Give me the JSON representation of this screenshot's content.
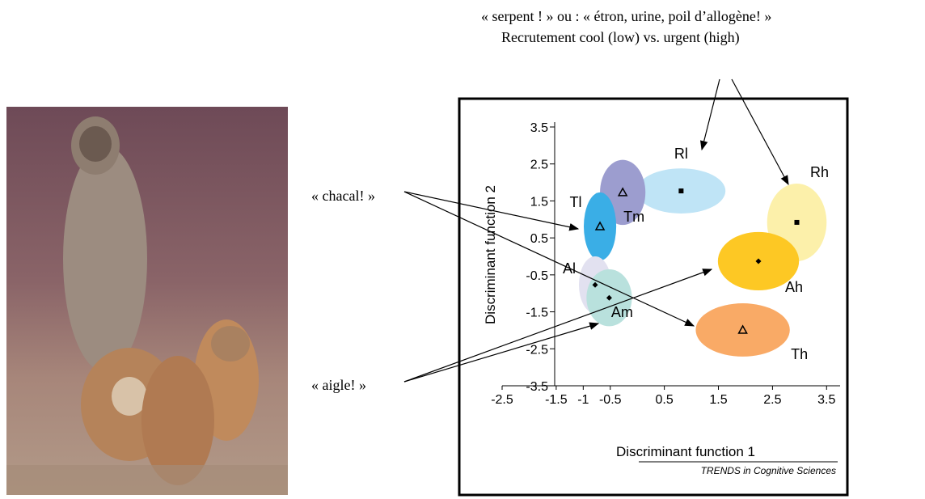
{
  "chart_data": {
    "type": "scatter",
    "annotations": [
      "« serpent ! » ou : « étron, urine, poil d’allogène! »",
      "Recrutement cool (low) vs. urgent (high)",
      "« chacal! »",
      "« aigle! »"
    ],
    "x_label": "Discriminant function 1",
    "y_label": "Discriminant function 2",
    "source": "TRENDS in Cognitive Sciences",
    "xlim": [
      -2.5,
      3.75
    ],
    "ylim": [
      -3.5,
      3.5
    ],
    "xticks": [
      -2.5,
      -1.5,
      -1,
      -0.5,
      0.5,
      1.5,
      2.5,
      3.5
    ],
    "yticks": [
      3.5,
      2.5,
      1.5,
      0.5,
      -0.5,
      -1.5,
      -2.5,
      -3.5
    ],
    "series": [
      {
        "name": "Rl",
        "color": "#bfe4f6",
        "marker": "square",
        "x": 0.81,
        "y": 1.77,
        "width": 0.82,
        "height": 0.61
      },
      {
        "name": "Rh",
        "color": "#fcf0aa",
        "marker": "square",
        "x": 2.95,
        "y": 0.92,
        "width": 0.55,
        "height": 1.05
      },
      {
        "name": "Ah",
        "color": "#fdc824",
        "marker": "diamond",
        "x": 2.24,
        "y": -0.13,
        "width": 0.75,
        "height": 0.79
      },
      {
        "name": "Th",
        "color": "#f9aa66",
        "marker": "triangle",
        "x": 1.95,
        "y": -1.99,
        "width": 0.87,
        "height": 0.72
      },
      {
        "name": "Tm",
        "color": "#9c9dcf",
        "marker": "triangle",
        "x": -0.27,
        "y": 1.73,
        "width": 0.42,
        "height": 0.88
      },
      {
        "name": "Tl",
        "color": "#3aaee6",
        "marker": "triangle",
        "x": -0.69,
        "y": 0.81,
        "width": 0.3,
        "height": 0.92
      },
      {
        "name": "Al",
        "color": "#e2e1f0",
        "marker": "diamond",
        "x": -0.78,
        "y": -0.77,
        "width": 0.3,
        "height": 0.77
      },
      {
        "name": "Am",
        "color": "#b9e1dd",
        "marker": "diamond",
        "x": -0.52,
        "y": -1.12,
        "width": 0.42,
        "height": 0.77
      }
    ]
  }
}
